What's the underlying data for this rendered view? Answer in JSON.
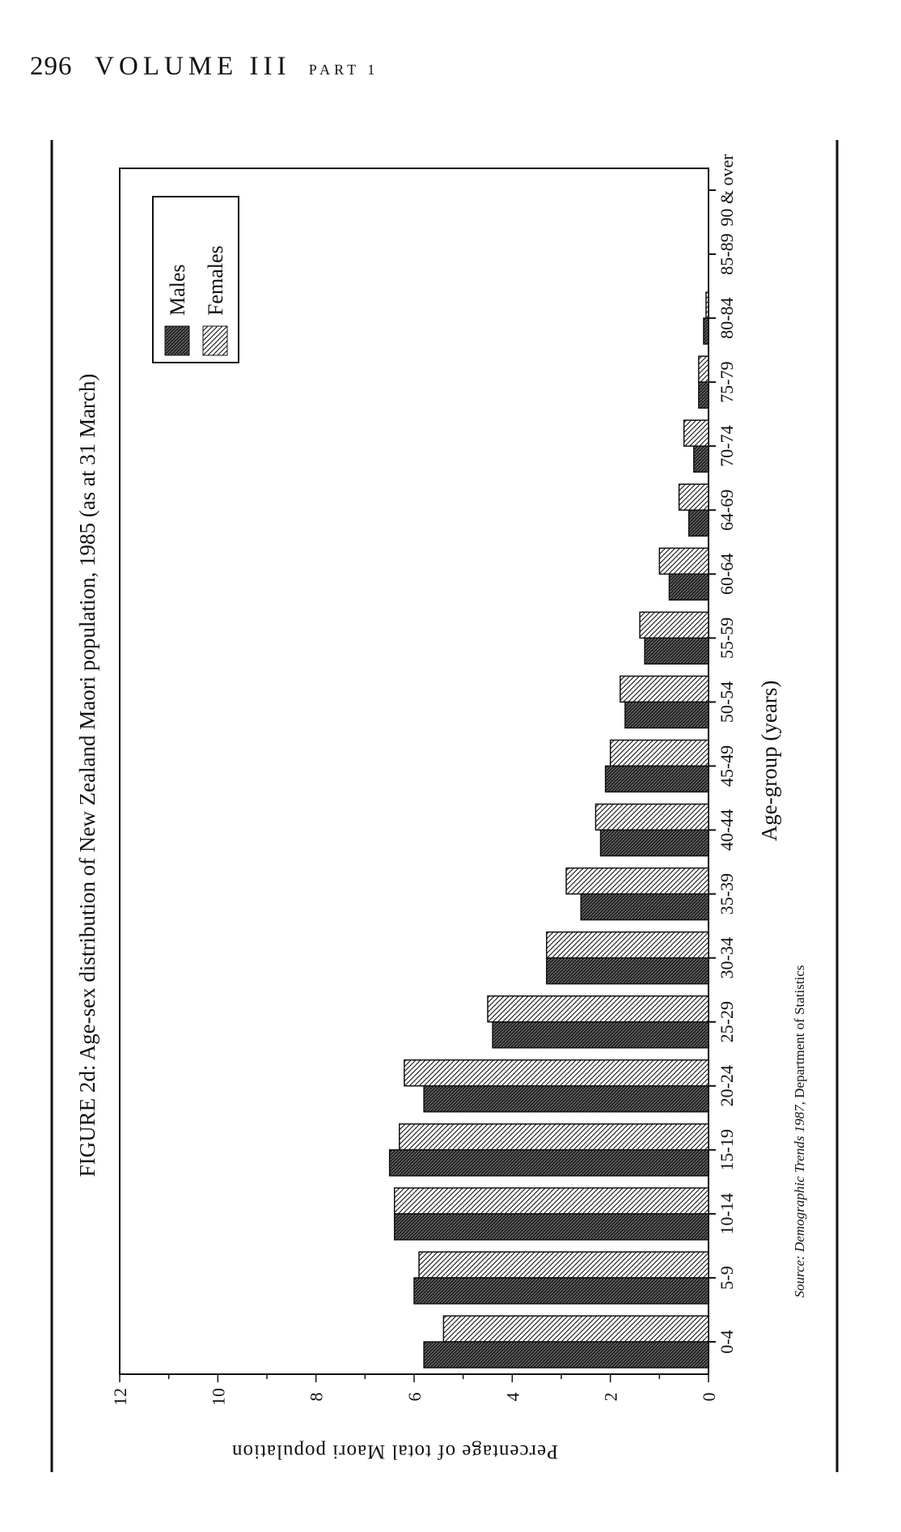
{
  "header": {
    "page_number": "296",
    "volume": "VOLUME III",
    "part": "PART 1"
  },
  "colors": {
    "ink": "#111111",
    "background": "#ffffff"
  },
  "chart_data": {
    "type": "bar",
    "orientation": "horizontal-rotated",
    "title": "FIGURE 2d: Age-sex distribution of New Zealand Maori population, 1985 (as at 31 March)",
    "xlabel": "Age-group (years)",
    "ylabel": "Percentage of total Maori population",
    "ylim": [
      0,
      12
    ],
    "yticks": [
      "0",
      "2",
      "4",
      "6",
      "8",
      "10",
      "12"
    ],
    "categories": [
      "0-4",
      "5-9",
      "10-14",
      "15-19",
      "20-24",
      "25-29",
      "30-34",
      "35-39",
      "40-44",
      "45-49",
      "50-54",
      "55-59",
      "60-64",
      "64-69",
      "70-74",
      "75-79",
      "80-84",
      "85-89",
      "90 & over"
    ],
    "series": [
      {
        "name": "Males",
        "values": [
          5.8,
          6.0,
          6.4,
          6.5,
          5.8,
          4.4,
          3.3,
          2.6,
          2.2,
          2.1,
          1.7,
          1.3,
          0.8,
          0.4,
          0.3,
          0.2,
          0.1,
          0,
          0
        ]
      },
      {
        "name": "Females",
        "values": [
          5.4,
          5.9,
          6.4,
          6.3,
          6.2,
          4.5,
          3.3,
          2.9,
          2.3,
          2.0,
          1.8,
          1.4,
          1.0,
          0.6,
          0.5,
          0.2,
          0.05,
          0,
          0
        ]
      }
    ],
    "legend": {
      "position": "top-right",
      "entries": [
        "Males",
        "Females"
      ]
    },
    "grid": false,
    "source_prefix": "Source: ",
    "source_title": "Demographic Trends 1987",
    "source_rest": ", Department of Statistics"
  }
}
